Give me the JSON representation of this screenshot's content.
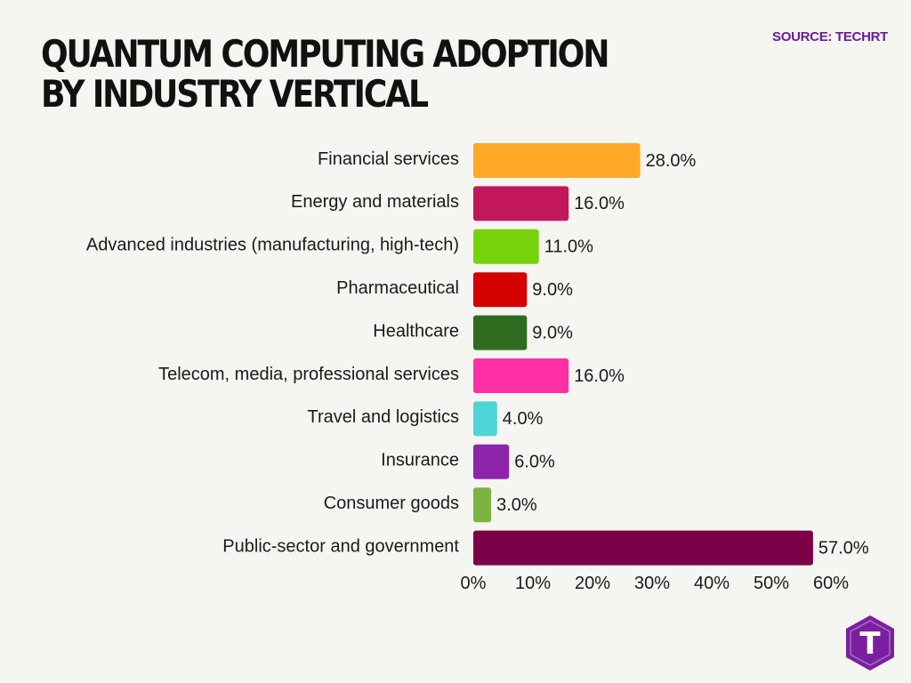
{
  "title": "QUANTUM COMPUTING ADOPTION BY INDUSTRY VERTICAL",
  "source": "SOURCE: TECHRT",
  "logo_letter": "T",
  "chart_data": {
    "type": "bar",
    "orientation": "horizontal",
    "title": "QUANTUM COMPUTING ADOPTION BY INDUSTRY VERTICAL",
    "categories": [
      "Financial services",
      "Energy and materials",
      "Advanced industries (manufacturing, high-tech)",
      "Pharmaceutical",
      "Healthcare",
      "Telecom, media, professional services",
      "Travel and logistics",
      "Insurance",
      "Consumer goods",
      "Public-sector and government"
    ],
    "values": [
      28.0,
      16.0,
      11.0,
      9.0,
      9.0,
      16.0,
      4.0,
      6.0,
      3.0,
      57.0
    ],
    "value_labels": [
      "28.0%",
      "16.0%",
      "11.0%",
      "9.0%",
      "9.0%",
      "16.0%",
      "4.0%",
      "6.0%",
      "3.0%",
      "57.0%"
    ],
    "colors": [
      "#ffa726",
      "#c2185b",
      "#76d30a",
      "#d50000",
      "#2e6b1f",
      "#ff2fa6",
      "#4dd5d5",
      "#8e24aa",
      "#7cb342",
      "#7a0047"
    ],
    "xlim": [
      0,
      60
    ],
    "xticks": [
      "0%",
      "10%",
      "20%",
      "30%",
      "40%",
      "50%",
      "60%"
    ],
    "grid": false,
    "legend": "none"
  }
}
